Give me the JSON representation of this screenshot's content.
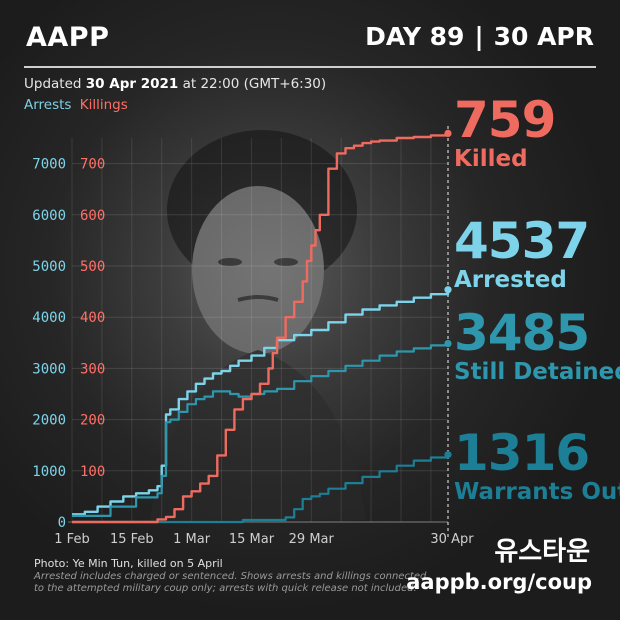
{
  "header": {
    "logo": "AAPP",
    "day_label": "DAY 89",
    "separator": "|",
    "date_label": "30 APR"
  },
  "updated": {
    "prefix": "Updated",
    "date": "30 Apr 2021",
    "suffix": "at 22:00 (GMT+6:30)"
  },
  "legend": {
    "arrests": "Arrests",
    "killings": "Killings"
  },
  "stats": [
    {
      "value": "759",
      "label": "Killed",
      "color": "#f06b5f"
    },
    {
      "value": "4537",
      "label": "Arrested",
      "color": "#7dd4ea"
    },
    {
      "value": "3485",
      "label": "Still Detained",
      "color": "#2f97ad"
    },
    {
      "value": "1316",
      "label": "Warrants Out",
      "color": "#1c7f95"
    }
  ],
  "footer": {
    "photo_credit": "Photo: Ye Min Tun, killed on 5 April",
    "note_line1": "Arrested includes charged or sentenced. Shows arrests and killings connected",
    "note_line2": "to the attempted military coup only; arrests with quick release not included.",
    "website": "aappb.org/coup",
    "watermark": "유스타운"
  },
  "chart_data": {
    "type": "line",
    "x_tick_labels": [
      "1 Feb",
      "15 Feb",
      "1 Mar",
      "15 Mar",
      "29 Mar",
      "30 Apr"
    ],
    "x_ticks_day": [
      0,
      14,
      28,
      42,
      56,
      88
    ],
    "xlim_day": [
      0,
      88
    ],
    "y_left_ticks": [
      0,
      1000,
      2000,
      3000,
      4000,
      5000,
      6000,
      7000
    ],
    "y_right_ticks": [
      100,
      200,
      300,
      400,
      500,
      600,
      700
    ],
    "y_left_lim": [
      0,
      7500
    ],
    "y_right_lim": [
      0,
      750
    ],
    "grid": true,
    "series": [
      {
        "name": "Arrests",
        "axis": "left",
        "color": "#7dd4ea",
        "width": 2.4,
        "x": [
          0,
          3,
          6,
          9,
          12,
          15,
          18,
          20,
          21,
          22,
          23,
          25,
          27,
          29,
          31,
          33,
          35,
          37,
          39,
          42,
          45,
          48,
          52,
          56,
          60,
          64,
          68,
          72,
          76,
          80,
          84,
          88
        ],
        "y": [
          150,
          200,
          300,
          400,
          500,
          560,
          620,
          700,
          1100,
          2100,
          2200,
          2400,
          2550,
          2700,
          2800,
          2900,
          2950,
          3050,
          3150,
          3250,
          3400,
          3550,
          3650,
          3750,
          3900,
          4050,
          4150,
          4230,
          4300,
          4380,
          4450,
          4537
        ]
      },
      {
        "name": "Still Detained",
        "axis": "left",
        "color": "#2f97ad",
        "width": 2.2,
        "x": [
          0,
          9,
          15,
          20,
          21,
          22,
          23,
          25,
          27,
          29,
          31,
          33,
          35,
          37,
          39,
          42,
          45,
          48,
          52,
          56,
          60,
          64,
          68,
          72,
          76,
          80,
          84,
          88
        ],
        "y": [
          120,
          300,
          480,
          560,
          900,
          1950,
          2000,
          2150,
          2300,
          2400,
          2450,
          2550,
          2550,
          2500,
          2450,
          2500,
          2550,
          2600,
          2750,
          2850,
          2950,
          3050,
          3150,
          3250,
          3330,
          3390,
          3450,
          3485
        ]
      },
      {
        "name": "Warrants Out",
        "axis": "left",
        "color": "#1c7f95",
        "width": 2.2,
        "x": [
          0,
          20,
          30,
          40,
          50,
          52,
          54,
          56,
          58,
          60,
          64,
          68,
          72,
          76,
          80,
          84,
          88
        ],
        "y": [
          0,
          0,
          0,
          40,
          90,
          250,
          450,
          500,
          550,
          650,
          760,
          880,
          990,
          1100,
          1200,
          1260,
          1316
        ]
      },
      {
        "name": "Killings",
        "axis": "right",
        "color": "#f06b5f",
        "width": 2.4,
        "x": [
          0,
          14,
          20,
          22,
          24,
          26,
          28,
          30,
          32,
          34,
          36,
          38,
          40,
          42,
          44,
          46,
          47,
          48,
          50,
          52,
          54,
          55,
          56,
          57,
          58,
          60,
          62,
          64,
          66,
          68,
          70,
          72,
          76,
          80,
          84,
          88
        ],
        "y": [
          0,
          0,
          5,
          10,
          25,
          50,
          60,
          75,
          90,
          130,
          180,
          220,
          240,
          250,
          270,
          300,
          330,
          360,
          400,
          430,
          470,
          510,
          540,
          570,
          600,
          690,
          720,
          730,
          735,
          740,
          743,
          745,
          750,
          752,
          755,
          759
        ]
      }
    ]
  }
}
